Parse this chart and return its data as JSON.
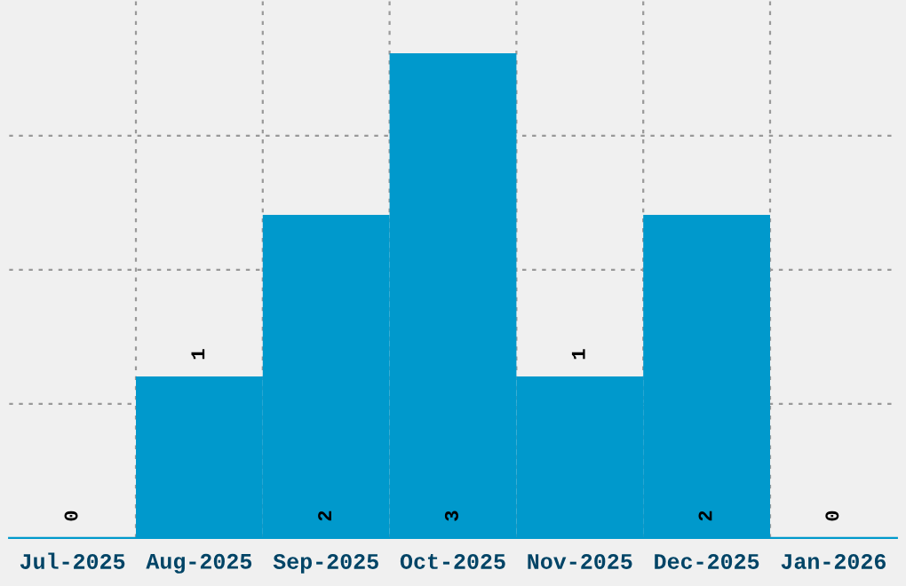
{
  "chart_data": {
    "type": "bar",
    "categories": [
      "Jul-2025",
      "Aug-2025",
      "Sep-2025",
      "Oct-2025",
      "Nov-2025",
      "Dec-2025",
      "Jan-2026"
    ],
    "values": [
      0,
      1,
      2,
      3,
      1,
      2,
      0
    ],
    "color": "#0099cc",
    "ylim": [
      0,
      3.33
    ],
    "yticks": [
      {
        "value": 0.83,
        "label": null
      },
      {
        "value": 1.66,
        "label": null
      },
      {
        "value": 2.49,
        "label": null
      }
    ],
    "grid": true,
    "data_labels": true
  }
}
